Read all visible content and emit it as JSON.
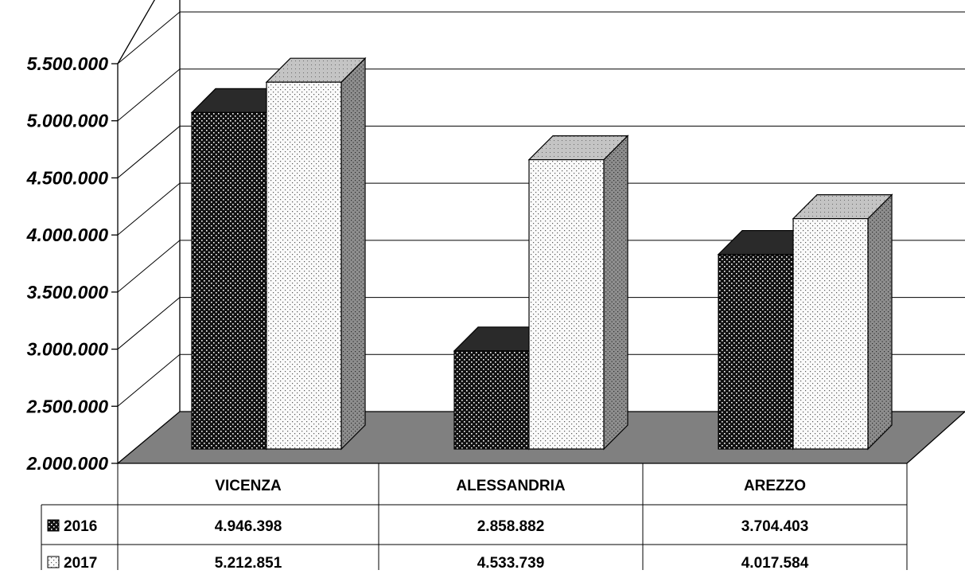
{
  "chart_data": {
    "type": "bar",
    "categories": [
      "VICENZA",
      "ALESSANDRIA",
      "AREZZO"
    ],
    "series": [
      {
        "name": "2016",
        "values": [
          4946398,
          2858882,
          3704403
        ],
        "labels": [
          "4.946.398",
          "2.858.882",
          "3.704.403"
        ],
        "pattern": "dark-dotted"
      },
      {
        "name": "2017",
        "values": [
          5212851,
          4533739,
          4017584
        ],
        "labels": [
          "5.212.851",
          "4.533.739",
          "4.017.584"
        ],
        "pattern": "light-dotted"
      }
    ],
    "ylim": [
      2000000,
      5500000
    ],
    "yticks": [
      2000000,
      2500000,
      3000000,
      3500000,
      4000000,
      4500000,
      5000000,
      5500000
    ],
    "ytick_labels": [
      "2.000.000",
      "2.500.000",
      "3.000.000",
      "3.500.000",
      "4.000.000",
      "4.500.000",
      "5.000.000",
      "5.500.000"
    ],
    "grid": true,
    "style": "3d-column",
    "legend": "data-table-below",
    "colors": {
      "floor": "#808080",
      "bar_dark": "#1a1a1a",
      "bar_light": "#f2f2f2",
      "top": "#bdbdbd",
      "side": "#8c8c8c"
    }
  }
}
